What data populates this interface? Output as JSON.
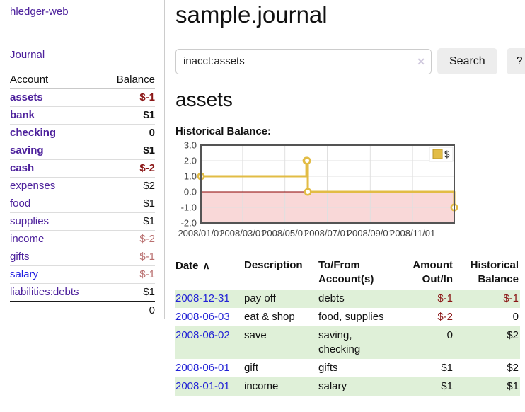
{
  "app": {
    "brand": "hledger-web"
  },
  "sidebar": {
    "journal_link": "Journal",
    "accounts": {
      "col_account": "Account",
      "col_balance": "Balance",
      "rows": [
        {
          "account": "assets",
          "balance": "$-1",
          "indent": 1,
          "bold": true,
          "balance_style": "neg-bold"
        },
        {
          "account": "bank",
          "balance": "$1",
          "indent": 2,
          "bold": true,
          "balance_style": "bold"
        },
        {
          "account": "checking",
          "balance": "0",
          "indent": 3,
          "bold": true,
          "balance_style": "bold"
        },
        {
          "account": "saving",
          "balance": "$1",
          "indent": 3,
          "bold": true,
          "balance_style": "bold"
        },
        {
          "account": "cash",
          "balance": "$-2",
          "indent": 2,
          "bold": true,
          "balance_style": "neg-bold"
        },
        {
          "account": "expenses",
          "balance": "$2",
          "indent": 1,
          "bold": false,
          "balance_style": "plain"
        },
        {
          "account": "food",
          "balance": "$1",
          "indent": 2,
          "bold": false,
          "balance_style": "plain"
        },
        {
          "account": "supplies",
          "balance": "$1",
          "indent": 2,
          "bold": false,
          "balance_style": "plain"
        },
        {
          "account": "income",
          "balance": "$-2",
          "indent": 1,
          "bold": false,
          "balance_style": "neg-soft"
        },
        {
          "account": "gifts",
          "balance": "$-1",
          "indent": 2,
          "bold": false,
          "balance_style": "neg-soft"
        },
        {
          "account": "salary",
          "balance": "$-1",
          "indent": 2,
          "bold": false,
          "balance_style": "neg-soft",
          "link_blue": true
        },
        {
          "account": "liabilities:debts",
          "balance": "$1",
          "indent": 1,
          "bold": false,
          "balance_style": "plain"
        }
      ],
      "total": "0"
    }
  },
  "main": {
    "title": "sample.journal",
    "search": {
      "value": "inacct:assets",
      "clear_icon": "✕",
      "search_button": "Search",
      "help_button": "?"
    },
    "account_heading": "assets",
    "chart_title": "Historical Balance:"
  },
  "chart_data": {
    "type": "line-step",
    "title": "Historical Balance",
    "xlim": [
      "2008-01-01",
      "2008-12-31"
    ],
    "ylim": [
      -2,
      3
    ],
    "x_ticks": [
      "2008/01/01",
      "2008/03/01",
      "2008/05/01",
      "2008/07/01",
      "2008/09/01",
      "2008/11/01"
    ],
    "y_ticks": [
      3.0,
      2.0,
      1.0,
      0.0,
      -1.0,
      -2.0
    ],
    "series": [
      {
        "name": "$",
        "color": "#e2bc45",
        "points": [
          [
            "2008-01-01",
            1
          ],
          [
            "2008-06-01",
            2
          ],
          [
            "2008-06-02",
            2
          ],
          [
            "2008-06-03",
            0
          ],
          [
            "2008-12-31",
            -1
          ]
        ]
      }
    ],
    "legend_position": "top-right",
    "grid": true,
    "grid_color": "#e0e0e0",
    "border_color": "#545454",
    "negative_region_fill": "#f9d8d8",
    "zero_line_color": "#8b0000",
    "tick_label_color": "#3f3f3f"
  },
  "register": {
    "headers": {
      "date": "Date",
      "sort_icon": "∧",
      "description": "Description",
      "accounts": "To/From Account(s)",
      "amount": "Amount Out/In",
      "balance": "Historical Balance"
    },
    "rows": [
      {
        "date": "2008-12-31",
        "description": "pay off",
        "accounts": "debts",
        "amount": "$-1",
        "balance": "$-1"
      },
      {
        "date": "2008-06-03",
        "description": "eat & shop",
        "accounts": "food, supplies",
        "amount": "$-2",
        "balance": "0"
      },
      {
        "date": "2008-06-02",
        "description": "save",
        "accounts": "saving, checking",
        "amount": "0",
        "balance": "$2"
      },
      {
        "date": "2008-06-01",
        "description": "gift",
        "accounts": "gifts",
        "amount": "$1",
        "balance": "$2"
      },
      {
        "date": "2008-01-01",
        "description": "income",
        "accounts": "salary",
        "amount": "$1",
        "balance": "$1"
      }
    ]
  },
  "colors": {
    "link_purple": "#4d219c",
    "link_blue": "#1d1ae0",
    "negative_dark": "#8b1717",
    "negative_soft": "#b96f6f",
    "row_green": "#dff0d8",
    "accent_yellow": "#e2bc45"
  }
}
